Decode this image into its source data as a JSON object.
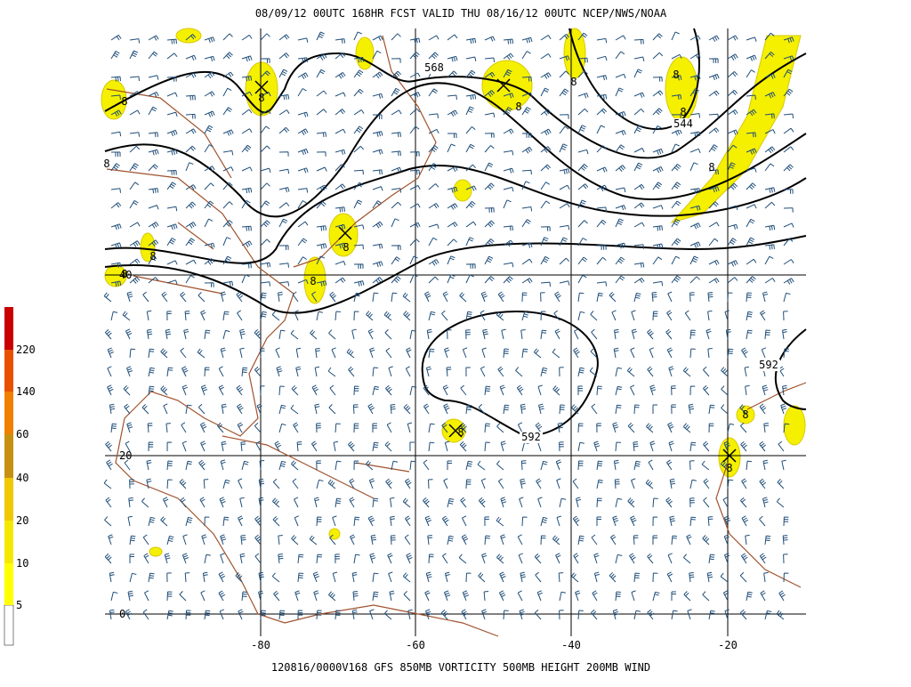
{
  "header": {
    "title": "08/09/12 00UTC  168HR  FCST VALID THU 08/16/12 00UTC  NCEP/NWS/NOAA"
  },
  "footer": {
    "caption": "120816/0000V168 GFS  850MB VORTICITY 500MB HEIGHT 200MB WIND"
  },
  "colorbar": {
    "labels": [
      "5",
      "10",
      "20",
      "40",
      "60",
      "140",
      "220"
    ]
  },
  "axes": {
    "lat_labels": [
      "40",
      "20",
      "0"
    ],
    "lon_labels": [
      "-80",
      "-60",
      "-40",
      "-20"
    ]
  },
  "contour_labels": [
    "568",
    "544",
    "592",
    "592"
  ],
  "vorticity_labels": [
    "8",
    "8",
    "8",
    "8",
    "8",
    "8",
    "8",
    "8",
    "8",
    "8",
    "8",
    "8",
    "8",
    "8",
    "8"
  ]
}
